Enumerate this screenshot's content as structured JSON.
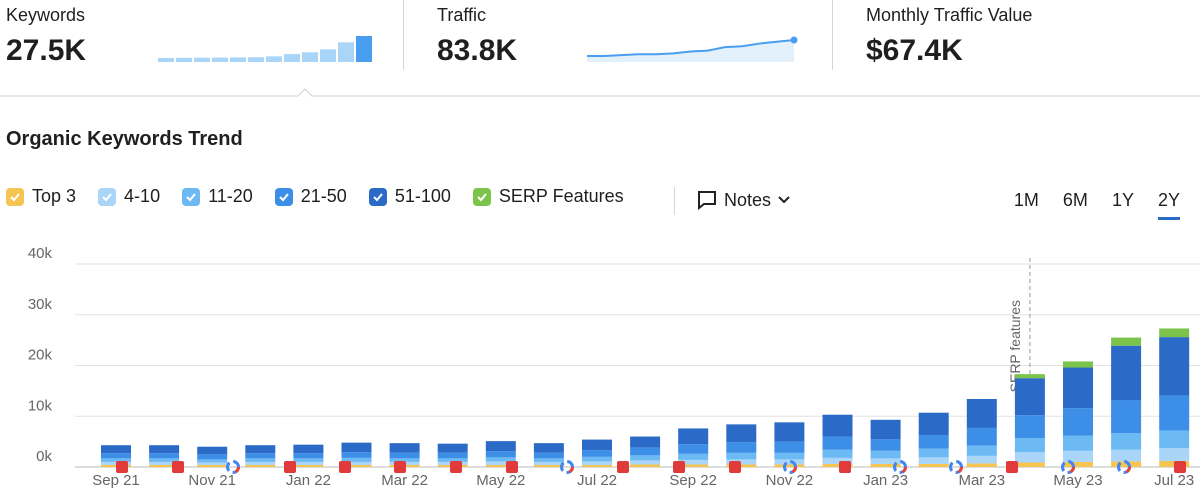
{
  "header": {
    "metrics": [
      {
        "label": "Keywords",
        "value": "27.5K",
        "sparkline": [
          4300,
          4400,
          4600,
          4700,
          4800,
          5100,
          6000,
          8400,
          10300,
          13400,
          20800,
          27500
        ]
      },
      {
        "label": "Traffic",
        "value": "83.8K",
        "sparkline": [
          60,
          60,
          61,
          62,
          62,
          63,
          65,
          66,
          70,
          71,
          74,
          76,
          78
        ]
      },
      {
        "label": "Monthly Traffic Value",
        "value": "$67.4K"
      }
    ]
  },
  "notes": "Notes",
  "periods": [
    "1M",
    "6M",
    "1Y",
    "2Y"
  ],
  "active_period": "2Y",
  "chart_data": {
    "type": "stacked-bar",
    "title": "Organic Keywords Trend",
    "annotation": "SERP features",
    "categories": [
      "Sep 21",
      null,
      "Nov 21",
      null,
      "Jan 22",
      null,
      "Mar 22",
      null,
      "May 22",
      null,
      "Jul 22",
      null,
      "Sep 22",
      null,
      "Nov 22",
      null,
      "Jan 23",
      null,
      "Mar 23",
      null,
      "May 23",
      null,
      "Jul 23"
    ],
    "series": [
      {
        "name": "Top 3",
        "color": "#f5c451",
        "values": [
          400,
          400,
          400,
          400,
          400,
          400,
          400,
          400,
          400,
          400,
          400,
          500,
          500,
          500,
          500,
          600,
          600,
          600,
          700,
          900,
          1000,
          1100,
          1200
        ]
      },
      {
        "name": "4-10",
        "color": "#a9d5f8",
        "values": [
          600,
          600,
          500,
          600,
          600,
          600,
          600,
          600,
          700,
          600,
          700,
          800,
          900,
          1000,
          1000,
          1200,
          1100,
          1300,
          1500,
          2000,
          2200,
          2300,
          2500
        ]
      },
      {
        "name": "11-20",
        "color": "#6cb9f3",
        "values": [
          700,
          700,
          600,
          700,
          700,
          800,
          700,
          700,
          800,
          700,
          900,
          1000,
          1200,
          1300,
          1300,
          1600,
          1500,
          1700,
          2000,
          2800,
          3000,
          3300,
          3500
        ]
      },
      {
        "name": "21-50",
        "color": "#3d8ee7",
        "values": [
          1000,
          1000,
          1000,
          1000,
          1000,
          1100,
          1100,
          1100,
          1200,
          1100,
          1300,
          1500,
          1900,
          2100,
          2200,
          2600,
          2300,
          2700,
          3500,
          4500,
          5400,
          6500,
          6900
        ]
      },
      {
        "name": "51-100",
        "color": "#2b6bc7",
        "values": [
          1600,
          1600,
          1500,
          1600,
          1700,
          1900,
          1900,
          1800,
          2000,
          1900,
          2100,
          2200,
          3100,
          3500,
          3800,
          4300,
          3800,
          4400,
          5700,
          7300,
          8000,
          10700,
          11500
        ]
      },
      {
        "name": "SERP Features",
        "color": "#7cc34b",
        "values": [
          0,
          0,
          0,
          0,
          0,
          0,
          0,
          0,
          0,
          0,
          0,
          0,
          0,
          0,
          0,
          0,
          0,
          0,
          0,
          800,
          1200,
          1600,
          1700
        ]
      }
    ],
    "ylim": [
      0,
      40000
    ],
    "yticks": [
      {
        "value": 0,
        "label": "0k"
      },
      {
        "value": 10000,
        "label": "10k"
      },
      {
        "value": 20000,
        "label": "20k"
      },
      {
        "value": 30000,
        "label": "30k"
      },
      {
        "value": 40000,
        "label": "40k"
      }
    ],
    "grid": true
  }
}
